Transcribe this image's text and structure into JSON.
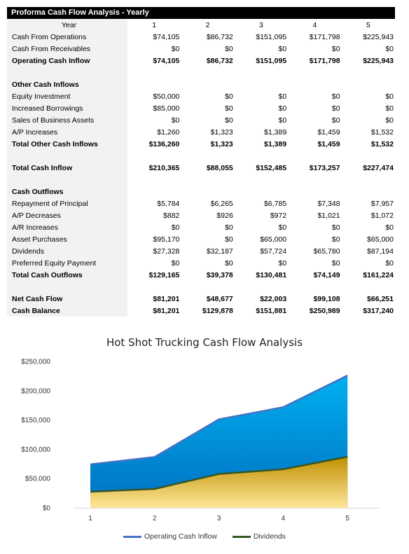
{
  "sheet": {
    "title": "Proforma Cash Flow Analysis - Yearly",
    "header": [
      "Year",
      "1",
      "2",
      "3",
      "4",
      "5"
    ],
    "rows": [
      {
        "label": "Cash From Operations",
        "values": [
          "$74,105",
          "$86,732",
          "$151,095",
          "$171,798",
          "$225,943"
        ],
        "bold": false
      },
      {
        "label": "Cash From Receivables",
        "values": [
          "$0",
          "$0",
          "$0",
          "$0",
          "$0"
        ],
        "bold": false
      },
      {
        "label": "Operating Cash Inflow",
        "values": [
          "$74,105",
          "$86,732",
          "$151,095",
          "$171,798",
          "$225,943"
        ],
        "bold": true
      },
      {
        "label": "",
        "values": [
          "",
          "",
          "",
          "",
          ""
        ],
        "bold": false
      },
      {
        "label": "Other Cash Inflows",
        "values": [
          "",
          "",
          "",
          "",
          ""
        ],
        "bold": true
      },
      {
        "label": "Equity Investment",
        "values": [
          "$50,000",
          "$0",
          "$0",
          "$0",
          "$0"
        ],
        "bold": false
      },
      {
        "label": "Increased Borrowings",
        "values": [
          "$85,000",
          "$0",
          "$0",
          "$0",
          "$0"
        ],
        "bold": false
      },
      {
        "label": "Sales of Business Assets",
        "values": [
          "$0",
          "$0",
          "$0",
          "$0",
          "$0"
        ],
        "bold": false
      },
      {
        "label": "A/P Increases",
        "values": [
          "$1,260",
          "$1,323",
          "$1,389",
          "$1,459",
          "$1,532"
        ],
        "bold": false
      },
      {
        "label": "Total Other Cash Inflows",
        "values": [
          "$136,260",
          "$1,323",
          "$1,389",
          "$1,459",
          "$1,532"
        ],
        "bold": true
      },
      {
        "label": "",
        "values": [
          "",
          "",
          "",
          "",
          ""
        ],
        "bold": false
      },
      {
        "label": "Total Cash Inflow",
        "values": [
          "$210,365",
          "$88,055",
          "$152,485",
          "$173,257",
          "$227,474"
        ],
        "bold": true
      },
      {
        "label": "",
        "values": [
          "",
          "",
          "",
          "",
          ""
        ],
        "bold": false
      },
      {
        "label": "Cash Outflows",
        "values": [
          "",
          "",
          "",
          "",
          ""
        ],
        "bold": true
      },
      {
        "label": "Repayment of Principal",
        "values": [
          "$5,784",
          "$6,265",
          "$6,785",
          "$7,348",
          "$7,957"
        ],
        "bold": false
      },
      {
        "label": "A/P Decreases",
        "values": [
          "$882",
          "$926",
          "$972",
          "$1,021",
          "$1,072"
        ],
        "bold": false
      },
      {
        "label": "A/R Increases",
        "values": [
          "$0",
          "$0",
          "$0",
          "$0",
          "$0"
        ],
        "bold": false
      },
      {
        "label": "Asset Purchases",
        "values": [
          "$95,170",
          "$0",
          "$65,000",
          "$0",
          "$65,000"
        ],
        "bold": false
      },
      {
        "label": "Dividends",
        "values": [
          "$27,328",
          "$32,187",
          "$57,724",
          "$65,780",
          "$87,194"
        ],
        "bold": false
      },
      {
        "label": "Preferred Equity Payment",
        "values": [
          "$0",
          "$0",
          "$0",
          "$0",
          "$0"
        ],
        "bold": false
      },
      {
        "label": "Total Cash Outflows",
        "values": [
          "$129,165",
          "$39,378",
          "$130,481",
          "$74,149",
          "$161,224"
        ],
        "bold": true
      },
      {
        "label": "",
        "values": [
          "",
          "",
          "",
          "",
          ""
        ],
        "bold": false
      },
      {
        "label": "Net Cash Flow",
        "values": [
          "$81,201",
          "$48,677",
          "$22,003",
          "$99,108",
          "$66,251"
        ],
        "bold": true
      },
      {
        "label": "Cash Balance",
        "values": [
          "$81,201",
          "$129,878",
          "$151,881",
          "$250,989",
          "$317,240"
        ],
        "bold": true
      }
    ]
  },
  "chart_data": {
    "type": "area",
    "title": "Hot Shot Trucking Cash Flow Analysis",
    "x": [
      "1",
      "2",
      "3",
      "4",
      "5"
    ],
    "series": [
      {
        "name": "Operating Cash Inflow",
        "values": [
          74105,
          86732,
          151095,
          171798,
          225943
        ],
        "line_color": "#4472c4",
        "fill_top": "#00b0f0",
        "fill_bottom": "#0070c0"
      },
      {
        "name": "Dividends",
        "values": [
          27328,
          32187,
          57724,
          65780,
          87194
        ],
        "line_color": "#375623",
        "fill_top": "#bf9000",
        "fill_bottom": "#ffe699"
      }
    ],
    "ylim": [
      0,
      250000
    ],
    "y_ticks": [
      0,
      50000,
      100000,
      150000,
      200000,
      250000
    ],
    "y_tick_labels": [
      "$0",
      "$50,000",
      "$100,000",
      "$150,000",
      "$200,000",
      "$250,000"
    ],
    "grid": false,
    "legend": "bottom"
  }
}
